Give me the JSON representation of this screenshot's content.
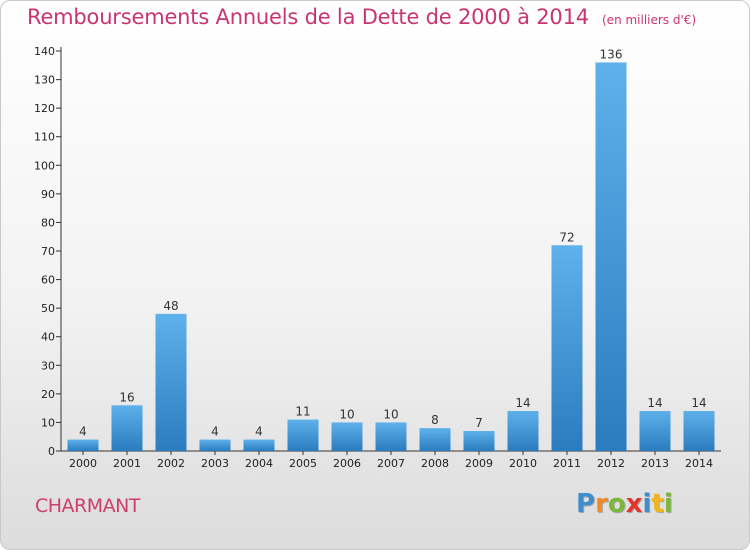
{
  "header": {
    "title": "Remboursements Annuels de la Dette de 2000 à 2014",
    "subtitle": "(en milliers d'€)"
  },
  "footer": {
    "commune": "CHARMANT",
    "logo": "Proxiti"
  },
  "colors": {
    "title": "#c93473",
    "bar_light": "#5eb1ea",
    "bar_dark": "#2a7cbf",
    "axis": "#333333"
  },
  "chart_data": {
    "type": "bar",
    "title": "Remboursements Annuels de la Dette de 2000 à 2014",
    "subtitle": "(en milliers d'€)",
    "xlabel": "",
    "ylabel": "",
    "categories": [
      "2000",
      "2001",
      "2002",
      "2003",
      "2004",
      "2005",
      "2006",
      "2007",
      "2008",
      "2009",
      "2010",
      "2011",
      "2012",
      "2013",
      "2014"
    ],
    "values": [
      4,
      16,
      48,
      4,
      4,
      11,
      10,
      10,
      8,
      7,
      14,
      72,
      136,
      14,
      14
    ],
    "ylim": [
      0,
      140
    ],
    "yticks": [
      0,
      10,
      20,
      30,
      40,
      50,
      60,
      70,
      80,
      90,
      100,
      110,
      120,
      130,
      140
    ],
    "grid": false,
    "data_labels": true
  }
}
